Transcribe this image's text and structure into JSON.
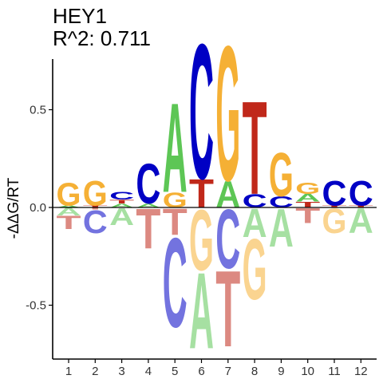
{
  "chart_data": {
    "type": "sequence-logo",
    "title": "HEY1",
    "subtitle": "R^2: 0.711",
    "xlabel": "",
    "ylabel": "-ΔΔG/RT",
    "ylim": [
      -0.77,
      0.77
    ],
    "yticks": [
      -0.5,
      0.0,
      0.5
    ],
    "ytick_labels": [
      "-0.5",
      "0.0",
      "0.5"
    ],
    "xticks": [
      "1",
      "2",
      "3",
      "4",
      "5",
      "6",
      "7",
      "8",
      "9",
      "10",
      "11",
      "12"
    ],
    "zero_line": true,
    "grid": false,
    "colors": {
      "A": "#5dc655",
      "C": "#0000c4",
      "G": "#f5b035",
      "T": "#c0281a"
    },
    "positions": [
      {
        "pos": 1,
        "positive": [
          [
            "A",
            0.01
          ],
          [
            "G",
            0.12
          ]
        ],
        "negative": [
          [
            "A",
            0.04
          ],
          [
            "T",
            0.07
          ]
        ]
      },
      {
        "pos": 2,
        "positive": [
          [
            "T",
            0.01
          ],
          [
            "G",
            0.13
          ]
        ],
        "negative": [
          [
            "T",
            0.01
          ],
          [
            "C",
            0.12
          ]
        ]
      },
      {
        "pos": 3,
        "positive": [
          [
            "A",
            0.02
          ],
          [
            "T",
            0.02
          ],
          [
            "C",
            0.04
          ]
        ],
        "negative": [
          [
            "A",
            0.09
          ]
        ]
      },
      {
        "pos": 4,
        "positive": [
          [
            "A",
            0.02
          ],
          [
            "C",
            0.21
          ]
        ],
        "negative": [
          [
            "T",
            0.21
          ]
        ]
      },
      {
        "pos": 5,
        "positive": [
          [
            "G",
            0.08
          ],
          [
            "A",
            0.47
          ]
        ],
        "negative": [
          [
            "T",
            0.14
          ],
          [
            "C",
            0.47
          ]
        ]
      },
      {
        "pos": 6,
        "positive": [
          [
            "T",
            0.15
          ],
          [
            "C",
            0.71
          ]
        ],
        "negative": [
          [
            "G",
            0.32
          ],
          [
            "A",
            0.4
          ]
        ]
      },
      {
        "pos": 7,
        "positive": [
          [
            "A",
            0.14
          ],
          [
            "G",
            0.71
          ]
        ],
        "negative": [
          [
            "C",
            0.31
          ],
          [
            "T",
            0.4
          ]
        ]
      },
      {
        "pos": 8,
        "positive": [
          [
            "C",
            0.07
          ],
          [
            "T",
            0.49
          ]
        ],
        "negative": [
          [
            "A",
            0.15
          ],
          [
            "G",
            0.32
          ]
        ]
      },
      {
        "pos": 9,
        "positive": [
          [
            "C",
            0.06
          ],
          [
            "G",
            0.23
          ]
        ],
        "negative": [
          [
            "A",
            0.2
          ]
        ]
      },
      {
        "pos": 10,
        "positive": [
          [
            "T",
            0.03
          ],
          [
            "A",
            0.04
          ],
          [
            "G",
            0.06
          ]
        ],
        "negative": [
          [
            "T",
            0.08
          ]
        ]
      },
      {
        "pos": 11,
        "positive": [
          [
            "T",
            0.01
          ],
          [
            "C",
            0.13
          ]
        ],
        "negative": [
          [
            "G",
            0.13
          ]
        ]
      },
      {
        "pos": 12,
        "positive": [
          [
            "T",
            0.01
          ],
          [
            "C",
            0.13
          ]
        ],
        "negative": [
          [
            "A",
            0.13
          ]
        ]
      }
    ]
  }
}
